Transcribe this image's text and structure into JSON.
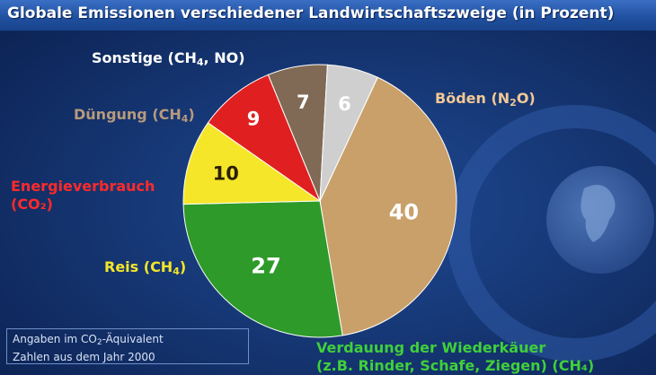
{
  "header": {
    "title": "Globale Emissionen verschiedener Landwirtschaftszweige (in Prozent)"
  },
  "footnote": {
    "line1_before": "Angaben im CO",
    "line1_sub": "2",
    "line1_after": "-Äquivalent",
    "line2": "Zahlen aus dem Jahr 2000"
  },
  "chart_data": {
    "type": "pie",
    "title": "Globale Emissionen verschiedener Landwirtschaftszweige (in Prozent)",
    "slices": [
      {
        "value": 40,
        "label_main": "Böden (N",
        "label_sub": "2",
        "label_end": "O)",
        "label_line2": "",
        "color": "#c9a06a",
        "label_color": "#f2c894"
      },
      {
        "value": 27,
        "label_main": "Verdauung der Wiederkäuer",
        "label_sub": "",
        "label_end": "",
        "label_line2": "(z.B. Rinder, Schafe, Ziegen) (CH₄)",
        "color": "#2e9a2a",
        "label_color": "#3fd03a"
      },
      {
        "value": 10,
        "label_main": "Reis (CH",
        "label_sub": "4",
        "label_end": ")",
        "label_line2": "",
        "color": "#f5e629",
        "label_color": "#f5e629"
      },
      {
        "value": 9,
        "label_main": "Energieverbrauch",
        "label_sub": "",
        "label_end": "",
        "label_line2": "(CO₂)",
        "color": "#e02020",
        "label_color": "#ff2a2a"
      },
      {
        "value": 7,
        "label_main": "Düngung (CH",
        "label_sub": "4",
        "label_end": ")",
        "label_line2": "",
        "color": "#806a55",
        "label_color": "#b79a7c"
      },
      {
        "value": 6,
        "label_main": "Sonstige (CH",
        "label_sub": "4",
        "label_end": ", NO)",
        "label_line2": "",
        "color": "#cfcfcf",
        "label_color": "#ffffff"
      }
    ]
  }
}
